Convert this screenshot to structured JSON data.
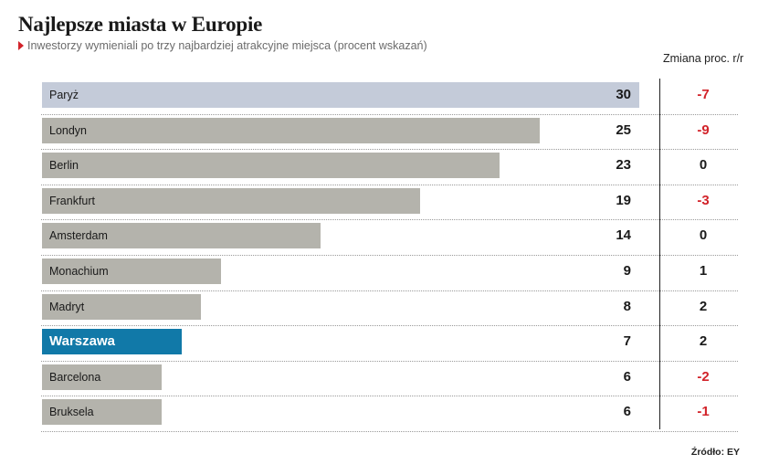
{
  "title": "Najlepsze miasta w Europie",
  "subtitle": "Inwestorzy wymieniali po trzy najbardziej atrakcyjne miejsca (procent wskazań)",
  "change_header": "Zmiana proc. r/r",
  "source": "Źródło: EY",
  "colors": {
    "bar": "#b4b3ac",
    "highlight": "#c4cbd9",
    "accent": "#1179a8",
    "negative": "#d2232a",
    "neutral": "#1a1a1a"
  },
  "chart_data": {
    "type": "bar",
    "orientation": "horizontal",
    "title": "Najlepsze miasta w Europie",
    "subtitle": "Inwestorzy wymieniali po trzy najbardziej atrakcyjne miejsca (procent wskazań)",
    "categories": [
      "Paryż",
      "Londyn",
      "Berlin",
      "Frankfurt",
      "Amsterdam",
      "Monachium",
      "Madryt",
      "Warszawa",
      "Barcelona",
      "Bruksela"
    ],
    "values": [
      30,
      25,
      23,
      19,
      14,
      9,
      8,
      7,
      6,
      6
    ],
    "value_labels": [
      "30",
      "25",
      "23",
      "19",
      "14",
      "9",
      "8",
      "7",
      "6",
      "6"
    ],
    "change_header": "Zmiana proc. r/r",
    "changes": [
      -7,
      -9,
      0,
      -3,
      0,
      1,
      2,
      2,
      -2,
      -1
    ],
    "change_labels": [
      "-7",
      "-9",
      "0",
      "-3",
      "0",
      "1",
      "2",
      "2",
      "-2",
      "-1"
    ],
    "highlight_index": 0,
    "accent_index": 7,
    "xlim": [
      0,
      30
    ]
  }
}
